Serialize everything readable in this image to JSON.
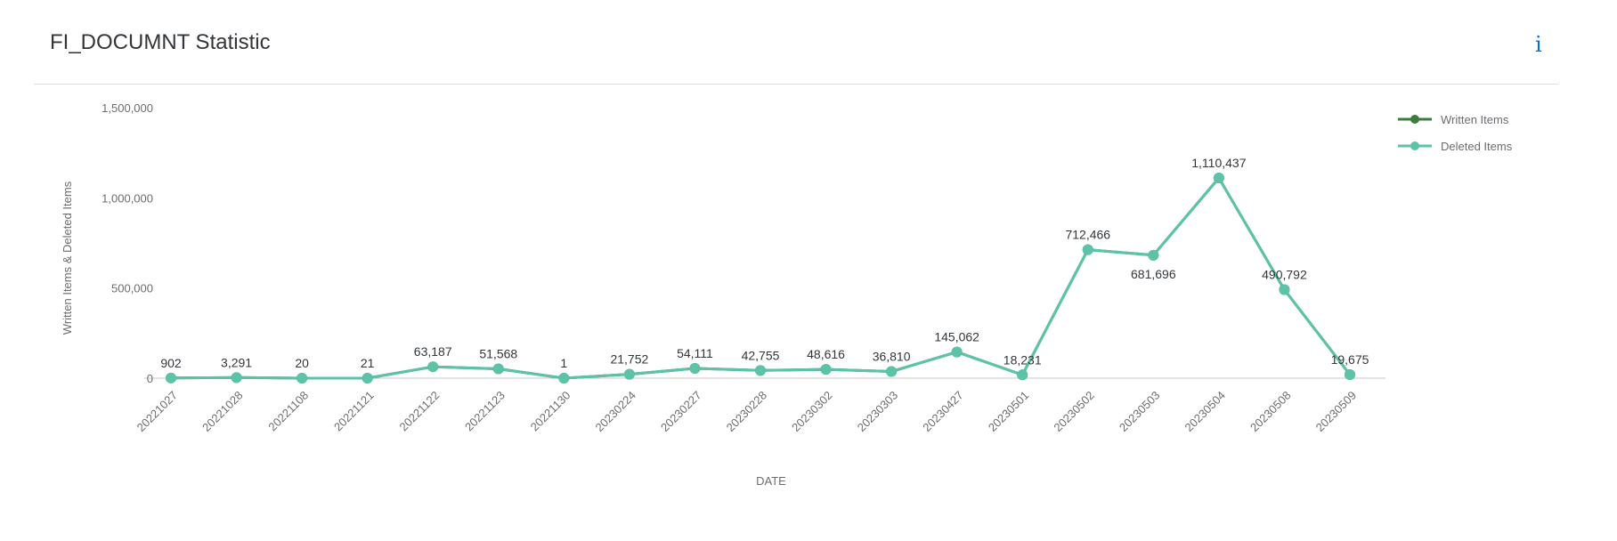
{
  "header": {
    "title": "FI_DOCUMNT Statistic",
    "info_icon": "i"
  },
  "colors": {
    "written": "#3a7d3a",
    "deleted": "#5cc3a9",
    "axis": "#c9c9c9"
  },
  "chart_data": {
    "type": "line",
    "title": "FI_DOCUMNT Statistic",
    "xlabel": "DATE",
    "ylabel": "Written Items & Deleted Items",
    "ylim": [
      0,
      1500000
    ],
    "yticks": [
      0,
      500000,
      1000000,
      1500000
    ],
    "ytick_labels": [
      "0",
      "500,000",
      "1,000,000",
      "1,500,000"
    ],
    "legend_position": "top-right",
    "grid": false,
    "categories": [
      "20221027",
      "20221028",
      "20221108",
      "20221121",
      "20221122",
      "20221123",
      "20221130",
      "20230224",
      "20230227",
      "20230228",
      "20230302",
      "20230303",
      "20230427",
      "20230501",
      "20230502",
      "20230503",
      "20230504",
      "20230508",
      "20230509"
    ],
    "series": [
      {
        "name": "Written Items",
        "values": [
          902,
          3291,
          20,
          21,
          63187,
          51568,
          1,
          21752,
          54111,
          42755,
          48616,
          36810,
          145062,
          18231,
          712466,
          681696,
          1110437,
          490792,
          19675
        ]
      },
      {
        "name": "Deleted Items",
        "values": [
          902,
          3291,
          20,
          21,
          63187,
          51568,
          1,
          21752,
          54111,
          42755,
          48616,
          36810,
          145062,
          18231,
          712466,
          681696,
          1110437,
          490792,
          19675
        ]
      }
    ],
    "data_labels": [
      "902",
      "3,291",
      "20",
      "21",
      "63,187",
      "51,568",
      "1",
      "21,752",
      "54,111",
      "42,755",
      "48,616",
      "36,810",
      "145,062",
      "18,231",
      "712,466",
      "681,696",
      "1,110,437",
      "490,792",
      "19,675"
    ]
  }
}
